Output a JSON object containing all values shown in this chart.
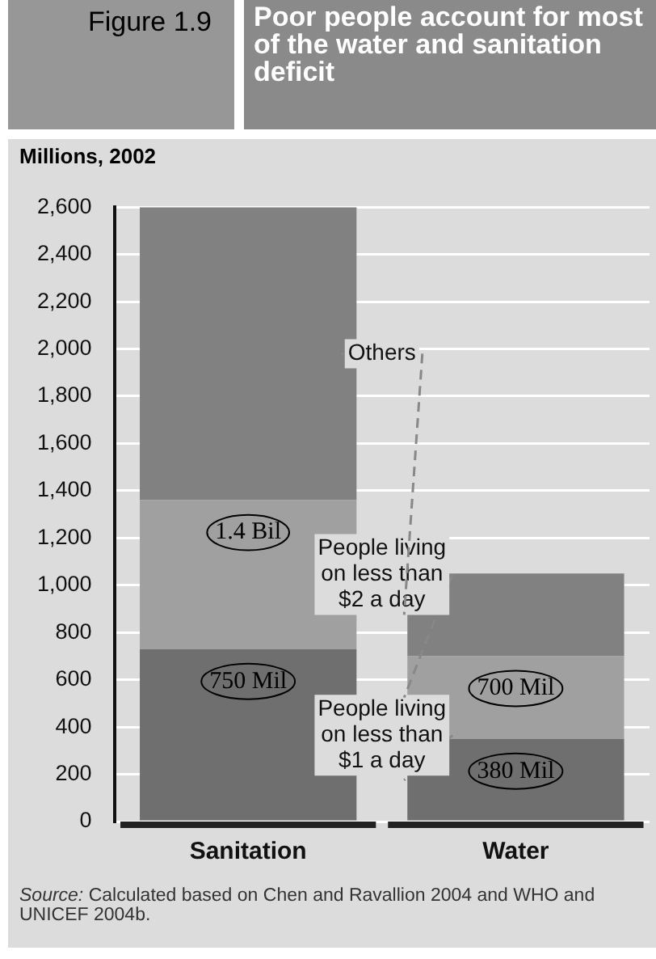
{
  "chart_data": {
    "type": "bar",
    "stacked": true,
    "title": "Poor people account for most of the water and sanitation deficit",
    "ylabel": "Millions, 2002",
    "categories": [
      "Sanitation",
      "Water"
    ],
    "series": [
      {
        "name": "People living on less than $1 a day",
        "color": "#6f6f6f",
        "values": [
          730,
          350
        ]
      },
      {
        "name": "People living on less than $2 a day",
        "color": "#a0a0a0",
        "values": [
          630,
          350
        ]
      },
      {
        "name": "Others",
        "color": "#818181",
        "values": [
          1240,
          350
        ]
      }
    ],
    "ylim": [
      0,
      2600
    ],
    "yticks": [
      0,
      200,
      400,
      600,
      800,
      {
        "value": 1000,
        "label": "1,000"
      },
      {
        "value": 1200,
        "label": "1,200"
      },
      {
        "value": 1400,
        "label": "1,400"
      },
      {
        "value": 1600,
        "label": "1,600"
      },
      {
        "value": 1800,
        "label": "1,800"
      },
      {
        "value": 2000,
        "label": "2,000"
      },
      {
        "value": 2200,
        "label": "2,200"
      },
      {
        "value": 2400,
        "label": "2,400"
      },
      {
        "value": 2600,
        "label": "2,600"
      }
    ],
    "grid": "y",
    "legend": false,
    "annotations": [
      "Figure 1.9",
      {
        "text": "1.4 Bil",
        "x": "Sanitation",
        "y": 1360
      },
      {
        "text": "750 Mil",
        "x": "Sanitation",
        "y": 730
      },
      {
        "text": "700 Mil",
        "x": "Water",
        "y": 700
      },
      {
        "text": "380 Mil",
        "x": "Water",
        "y": 350
      },
      "Source: Calculated based on Chen and Ravallion 2004 and WHO and UNICEF 2004b."
    ]
  }
}
